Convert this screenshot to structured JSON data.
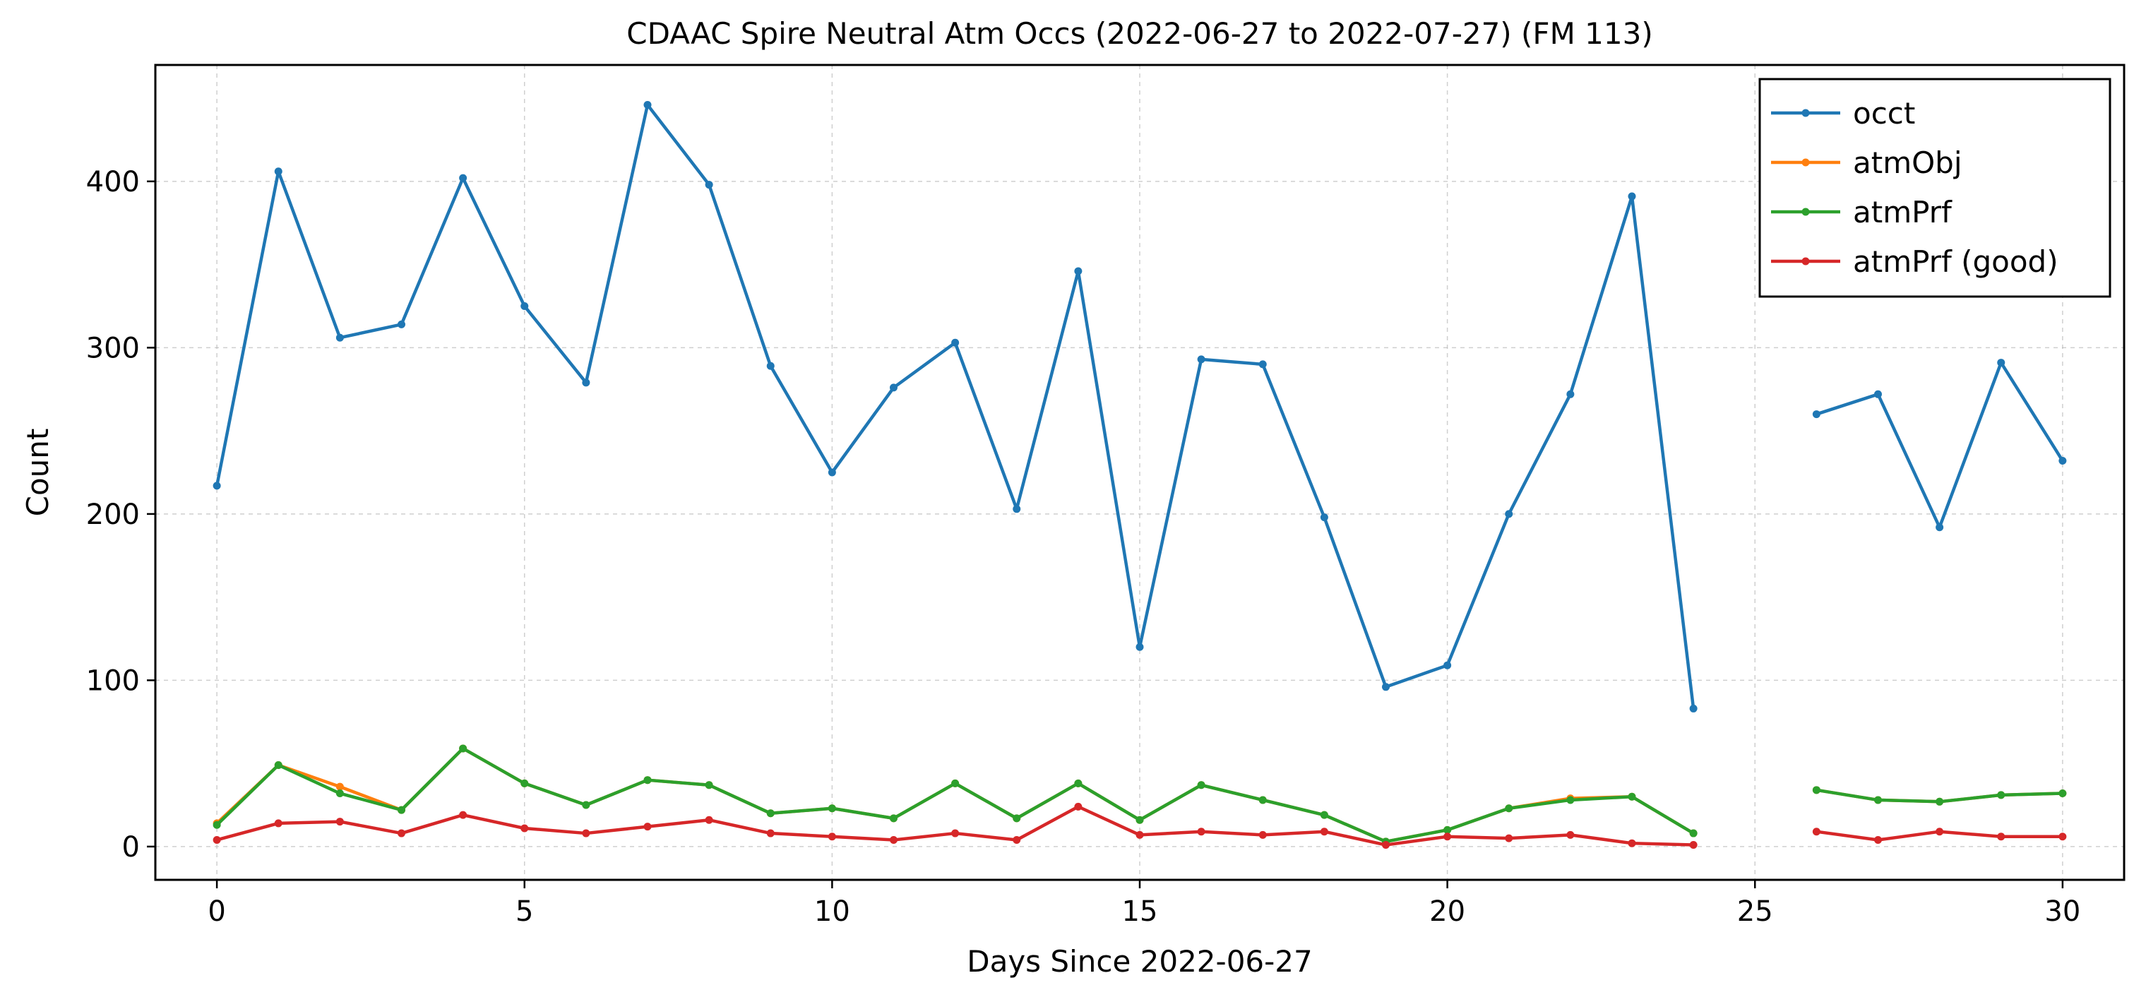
{
  "chart_data": {
    "type": "line",
    "title": "CDAAC Spire Neutral Atm Occs (2022-06-27 to 2022-07-27) (FM 113)",
    "xlabel": "Days Since 2022-06-27",
    "ylabel": "Count",
    "xlim": [
      -1,
      31
    ],
    "ylim": [
      -20,
      470
    ],
    "xticks": [
      0,
      5,
      10,
      15,
      20,
      25,
      30
    ],
    "yticks": [
      0,
      100,
      200,
      300,
      400
    ],
    "grid": true,
    "legend_position": "top-right",
    "x": [
      0,
      1,
      2,
      3,
      4,
      5,
      6,
      7,
      8,
      9,
      10,
      11,
      12,
      13,
      14,
      15,
      16,
      17,
      18,
      19,
      20,
      21,
      22,
      23,
      24,
      25,
      26,
      27,
      28,
      29,
      30
    ],
    "series": [
      {
        "name": "occt",
        "color": "#1f77b4",
        "values": [
          217,
          406,
          306,
          314,
          402,
          325,
          279,
          446,
          398,
          289,
          225,
          276,
          303,
          203,
          346,
          120,
          293,
          290,
          198,
          96,
          109,
          200,
          272,
          391,
          83,
          null,
          260,
          272,
          192,
          291,
          232
        ]
      },
      {
        "name": "atmObj",
        "color": "#ff7f0e",
        "values": [
          14,
          49,
          36,
          22,
          59,
          38,
          25,
          40,
          37,
          20,
          23,
          17,
          38,
          17,
          38,
          16,
          37,
          28,
          19,
          3,
          10,
          23,
          29,
          30,
          8,
          null,
          34,
          28,
          27,
          31,
          32
        ]
      },
      {
        "name": "atmPrf",
        "color": "#2ca02c",
        "values": [
          13,
          49,
          32,
          22,
          59,
          38,
          25,
          40,
          37,
          20,
          23,
          17,
          38,
          17,
          38,
          16,
          37,
          28,
          19,
          3,
          10,
          23,
          28,
          30,
          8,
          null,
          34,
          28,
          27,
          31,
          32
        ]
      },
      {
        "name": "atmPrf (good)",
        "color": "#d62728",
        "values": [
          4,
          14,
          15,
          8,
          19,
          11,
          8,
          12,
          16,
          8,
          6,
          4,
          8,
          4,
          24,
          7,
          9,
          7,
          9,
          1,
          6,
          5,
          7,
          2,
          1,
          null,
          9,
          4,
          9,
          6,
          6
        ]
      }
    ]
  }
}
